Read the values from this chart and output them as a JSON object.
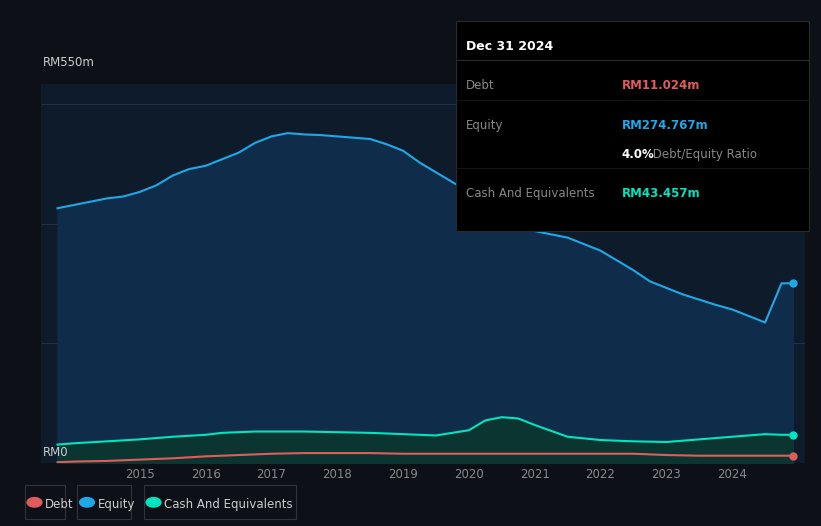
{
  "bg_color": "#0d1117",
  "plot_bg_color": "#0d1b2a",
  "grid_color": "#253d5a",
  "title_box": {
    "date": "Dec 31 2024",
    "debt_label": "Debt",
    "debt_value": "RM11.024m",
    "equity_label": "Equity",
    "equity_value": "RM274.767m",
    "ratio_value": "4.0%",
    "ratio_label": " Debt/Equity Ratio",
    "cash_label": "Cash And Equivalents",
    "cash_value": "RM43.457m"
  },
  "ylabel_top": "RM550m",
  "ylabel_bottom": "RM0",
  "x_tick_years": [
    2015,
    2016,
    2017,
    2018,
    2019,
    2020,
    2021,
    2022,
    2023,
    2024
  ],
  "equity_color": "#1fa8e8",
  "debt_color": "#e05c5c",
  "cash_color": "#00e5c0",
  "equity_fill": "#0f2d4a",
  "cash_fill": "#0a3530",
  "ylim_max": 550,
  "equity_data": {
    "x": [
      2013.75,
      2014.0,
      2014.25,
      2014.5,
      2014.75,
      2015.0,
      2015.25,
      2015.5,
      2015.75,
      2016.0,
      2016.25,
      2016.5,
      2016.75,
      2017.0,
      2017.25,
      2017.5,
      2017.75,
      2018.0,
      2018.25,
      2018.5,
      2018.75,
      2019.0,
      2019.25,
      2019.5,
      2019.75,
      2020.0,
      2020.25,
      2020.5,
      2020.75,
      2021.0,
      2021.25,
      2021.5,
      2021.75,
      2022.0,
      2022.25,
      2022.5,
      2022.75,
      2023.0,
      2023.25,
      2023.5,
      2023.75,
      2024.0,
      2024.25,
      2024.5,
      2024.75,
      2024.92
    ],
    "y": [
      390,
      395,
      400,
      405,
      408,
      415,
      425,
      440,
      450,
      455,
      465,
      475,
      490,
      500,
      505,
      503,
      502,
      500,
      498,
      496,
      488,
      478,
      460,
      445,
      430,
      415,
      395,
      375,
      358,
      355,
      350,
      345,
      335,
      325,
      310,
      295,
      278,
      268,
      258,
      250,
      242,
      235,
      225,
      215,
      275,
      275
    ]
  },
  "debt_data": {
    "x": [
      2013.75,
      2014.0,
      2014.5,
      2015.0,
      2015.5,
      2016.0,
      2016.5,
      2017.0,
      2017.5,
      2018.0,
      2018.5,
      2019.0,
      2019.5,
      2020.0,
      2020.5,
      2021.0,
      2021.5,
      2022.0,
      2022.5,
      2023.0,
      2023.5,
      2024.0,
      2024.5,
      2024.92
    ],
    "y": [
      1,
      2,
      3,
      5,
      7,
      10,
      12,
      14,
      15,
      15,
      15,
      14,
      14,
      14,
      14,
      14,
      14,
      14,
      14,
      12,
      11,
      11,
      11,
      11
    ]
  },
  "cash_data": {
    "x": [
      2013.75,
      2014.0,
      2014.5,
      2015.0,
      2015.5,
      2016.0,
      2016.25,
      2016.5,
      2016.75,
      2017.0,
      2017.5,
      2018.0,
      2018.5,
      2019.0,
      2019.5,
      2020.0,
      2020.25,
      2020.5,
      2020.75,
      2021.0,
      2021.5,
      2022.0,
      2022.5,
      2023.0,
      2023.25,
      2023.5,
      2023.75,
      2024.0,
      2024.25,
      2024.5,
      2024.75,
      2024.92
    ],
    "y": [
      28,
      30,
      33,
      36,
      40,
      43,
      46,
      47,
      48,
      48,
      48,
      47,
      46,
      44,
      42,
      50,
      65,
      70,
      68,
      58,
      40,
      35,
      33,
      32,
      34,
      36,
      38,
      40,
      42,
      44,
      43,
      43
    ]
  }
}
